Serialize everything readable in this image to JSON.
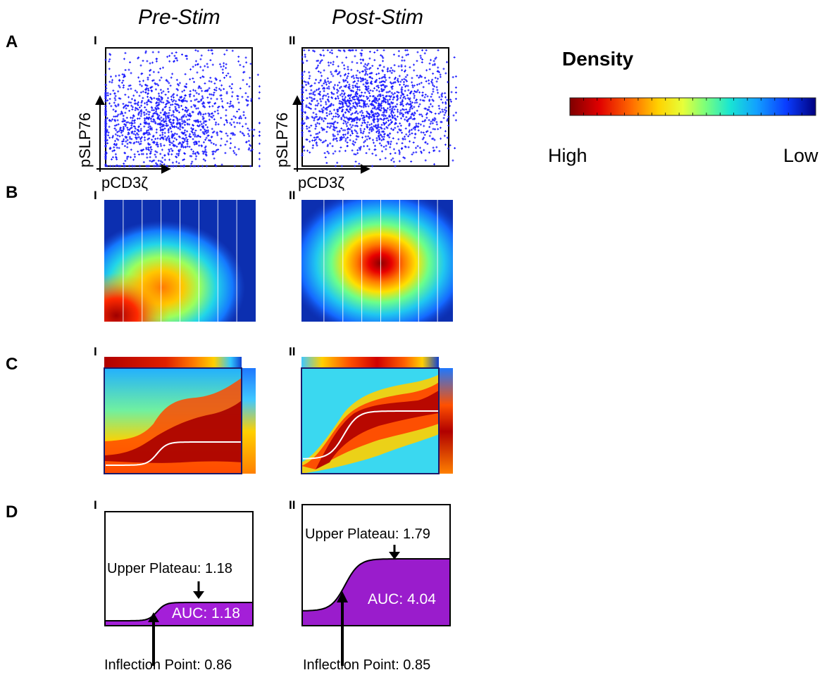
{
  "columns": {
    "pre": "Pre-Stim",
    "post": "Post-Stim"
  },
  "rows": [
    "A",
    "B",
    "C",
    "D"
  ],
  "panel_labels": {
    "left": "I",
    "right": "II"
  },
  "axes": {
    "x": "pCD3ζ",
    "y": "pSLP76"
  },
  "legend": {
    "title": "Density",
    "high_label": "High",
    "low_label": "Low",
    "stops": [
      "#7f0000",
      "#e00000",
      "#ff6a00",
      "#ffd200",
      "#e6ff3a",
      "#7cff7a",
      "#19e6d2",
      "#12a0ff",
      "#0a3cff",
      "#00007f"
    ]
  },
  "colors": {
    "scatter_point": "#1a1aff",
    "auc_fill_pre": "#a41fd8",
    "auc_fill_post": "#9a1ccc"
  },
  "panel_d": {
    "pre": {
      "upper_plateau": "Upper Plateau: 1.18",
      "auc": "AUC: 1.18",
      "inflection": "Inflection Point: 0.86"
    },
    "post": {
      "upper_plateau": "Upper Plateau: 1.79",
      "auc": "AUC: 4.04",
      "inflection": "Inflection Point: 0.85"
    }
  }
}
